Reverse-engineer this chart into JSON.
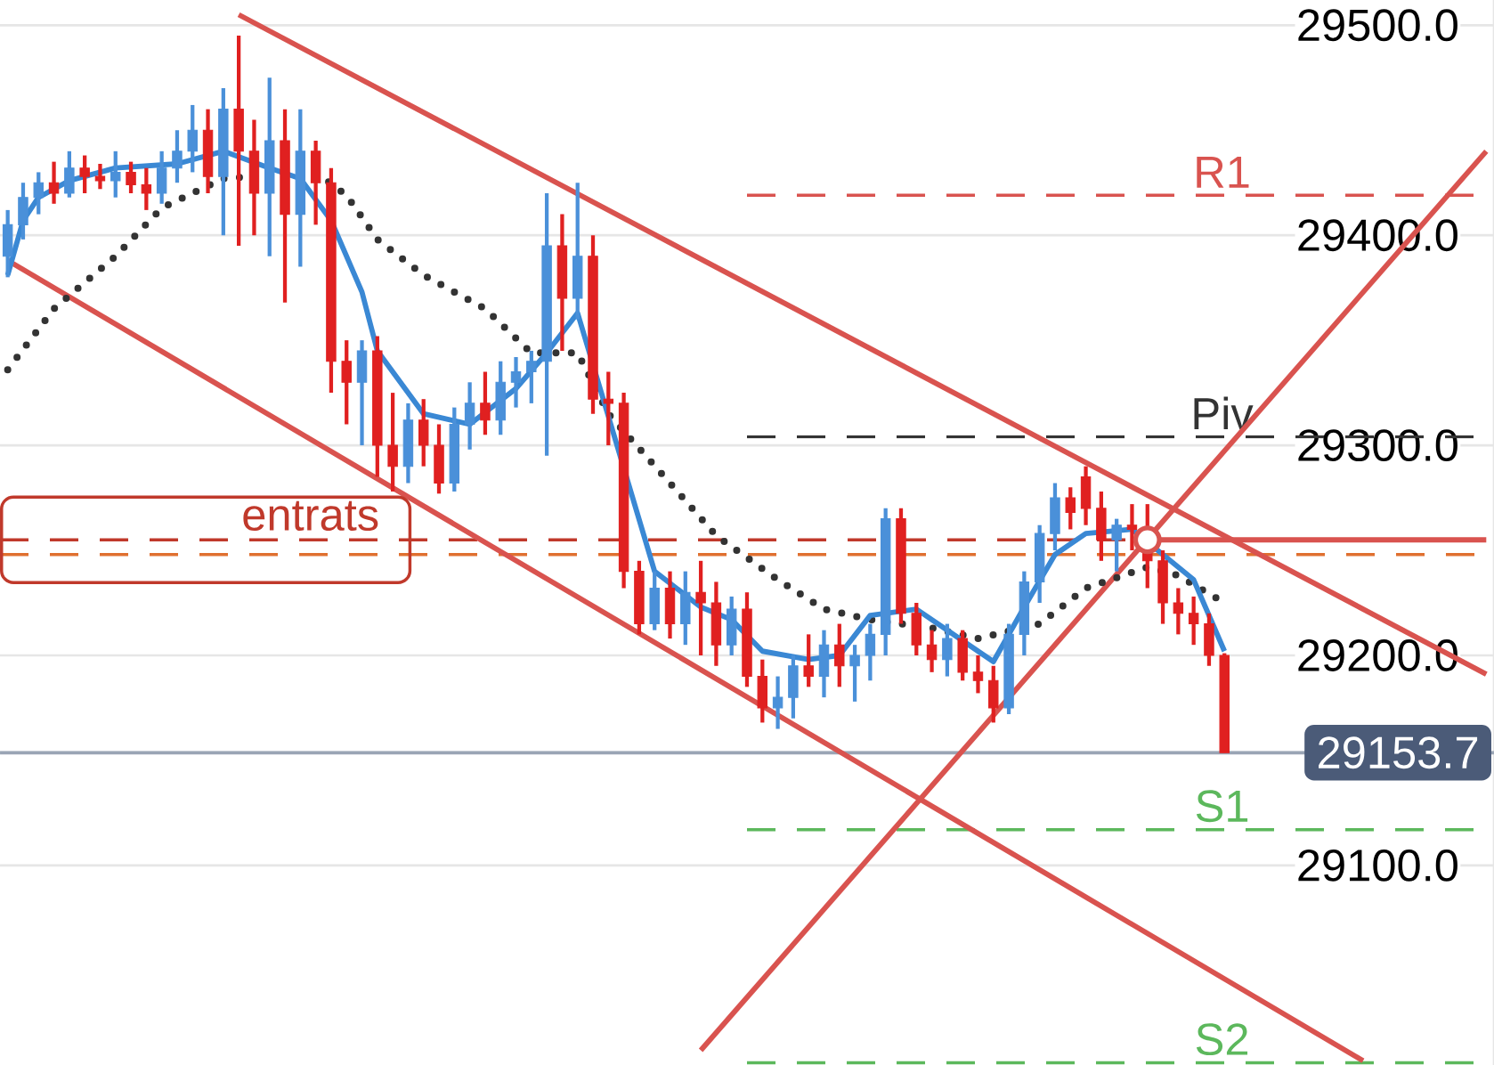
{
  "chart_data": {
    "type": "candlestick",
    "categories": [
      null,
      null,
      null,
      null,
      null,
      null,
      null,
      null,
      null,
      null,
      null,
      null,
      null,
      null,
      null,
      null,
      null,
      null,
      null,
      null,
      null,
      null,
      null,
      null,
      null,
      null,
      null,
      null,
      null,
      null,
      null,
      null,
      null,
      null,
      null,
      null,
      null,
      null,
      null,
      null,
      null,
      null,
      null,
      null,
      null,
      null,
      null,
      null,
      null,
      null,
      null,
      null,
      null,
      null,
      null,
      null,
      null,
      null,
      null,
      null,
      null,
      null,
      null,
      null,
      null,
      null,
      null,
      null,
      null,
      null,
      null,
      null,
      null,
      null,
      null,
      null,
      null,
      null,
      null,
      null,
      null,
      null,
      null,
      null,
      null,
      null,
      null,
      null,
      null,
      null,
      null,
      null,
      null,
      null,
      null,
      null,
      null
    ],
    "ohlc": [
      [
        29390,
        29412,
        29380,
        29405
      ],
      [
        29405,
        29425,
        29398,
        29418
      ],
      [
        29418,
        29430,
        29410,
        29425
      ],
      [
        29425,
        29435,
        29415,
        29420
      ],
      [
        29420,
        29440,
        29418,
        29432
      ],
      [
        29432,
        29438,
        29420,
        29428
      ],
      [
        29428,
        29434,
        29422,
        29426
      ],
      [
        29426,
        29440,
        29418,
        29430
      ],
      [
        29430,
        29435,
        29420,
        29424
      ],
      [
        29424,
        29432,
        29412,
        29420
      ],
      [
        29420,
        29440,
        29415,
        29432
      ],
      [
        29432,
        29450,
        29425,
        29440
      ],
      [
        29440,
        29462,
        29430,
        29450
      ],
      [
        29450,
        29460,
        29420,
        29428
      ],
      [
        29428,
        29470,
        29400,
        29460
      ],
      [
        29460,
        29495,
        29395,
        29440
      ],
      [
        29440,
        29455,
        29400,
        29420
      ],
      [
        29420,
        29475,
        29390,
        29445
      ],
      [
        29445,
        29460,
        29368,
        29410
      ],
      [
        29410,
        29460,
        29385,
        29440
      ],
      [
        29440,
        29445,
        29405,
        29425
      ],
      [
        29425,
        29432,
        29325,
        29340
      ],
      [
        29340,
        29350,
        29310,
        29330
      ],
      [
        29330,
        29350,
        29300,
        29345
      ],
      [
        29345,
        29352,
        29285,
        29300
      ],
      [
        29300,
        29325,
        29278,
        29290
      ],
      [
        29290,
        29320,
        29282,
        29312
      ],
      [
        29312,
        29322,
        29290,
        29300
      ],
      [
        29300,
        29310,
        29277,
        29282
      ],
      [
        29282,
        29318,
        29278,
        29310
      ],
      [
        29310,
        29330,
        29298,
        29320
      ],
      [
        29320,
        29335,
        29305,
        29312
      ],
      [
        29312,
        29340,
        29305,
        29330
      ],
      [
        29330,
        29342,
        29318,
        29335
      ],
      [
        29335,
        29345,
        29320,
        29340
      ],
      [
        29340,
        29420,
        29295,
        29395
      ],
      [
        29395,
        29410,
        29345,
        29370
      ],
      [
        29370,
        29425,
        29360,
        29390
      ],
      [
        29390,
        29400,
        29315,
        29322
      ],
      [
        29322,
        29335,
        29300,
        29320
      ],
      [
        29320,
        29325,
        29232,
        29240
      ],
      [
        29240,
        29245,
        29210,
        29215
      ],
      [
        29215,
        29240,
        29212,
        29232
      ],
      [
        29232,
        29240,
        29208,
        29215
      ],
      [
        29215,
        29240,
        29205,
        29230
      ],
      [
        29230,
        29245,
        29200,
        29225
      ],
      [
        29225,
        29235,
        29195,
        29205
      ],
      [
        29205,
        29228,
        29200,
        29222
      ],
      [
        29222,
        29230,
        29185,
        29190
      ],
      [
        29190,
        29198,
        29168,
        29175
      ],
      [
        29175,
        29190,
        29165,
        29180
      ],
      [
        29180,
        29200,
        29170,
        29195
      ],
      [
        29195,
        29210,
        29185,
        29190
      ],
      [
        29190,
        29212,
        29180,
        29205
      ],
      [
        29205,
        29215,
        29185,
        29195
      ],
      [
        29195,
        29205,
        29178,
        29200
      ],
      [
        29200,
        29215,
        29188,
        29210
      ],
      [
        29210,
        29270,
        29200,
        29265
      ],
      [
        29265,
        29270,
        29215,
        29220
      ],
      [
        29220,
        29225,
        29200,
        29205
      ],
      [
        29205,
        29212,
        29192,
        29198
      ],
      [
        29198,
        29215,
        29190,
        29208
      ],
      [
        29208,
        29212,
        29188,
        29192
      ],
      [
        29192,
        29200,
        29182,
        29188
      ],
      [
        29188,
        29195,
        29168,
        29175
      ],
      [
        29175,
        29215,
        29172,
        29210
      ],
      [
        29210,
        29240,
        29200,
        29235
      ],
      [
        29235,
        29262,
        29225,
        29258
      ],
      [
        29258,
        29282,
        29250,
        29275
      ],
      [
        29275,
        29280,
        29260,
        29268
      ],
      [
        29285,
        29290,
        29262,
        29270
      ],
      [
        29270,
        29278,
        29245,
        29255
      ],
      [
        29255,
        29265,
        29240,
        29262
      ],
      [
        29262,
        29272,
        29250,
        29260
      ],
      [
        29260,
        29272,
        29232,
        29245
      ],
      [
        29245,
        29250,
        29215,
        29225
      ],
      [
        29225,
        29232,
        29210,
        29220
      ],
      [
        29220,
        29228,
        29205,
        29215
      ],
      [
        29215,
        29220,
        29195,
        29200
      ],
      [
        29200,
        29201,
        29153.7,
        29153.7
      ],
      null,
      null,
      null,
      null,
      null,
      null,
      null,
      null,
      null,
      null,
      null,
      null,
      null,
      null,
      null,
      null,
      null
    ],
    "colors": [
      "#4a90d9",
      "#4a90d9",
      "#4a90d9",
      "#e02020",
      "#4a90d9",
      "#e02020",
      "#e02020",
      "#4a90d9",
      "#e02020",
      "#e02020",
      "#4a90d9",
      "#4a90d9",
      "#4a90d9",
      "#e02020",
      "#4a90d9",
      "#e02020",
      "#e02020",
      "#4a90d9",
      "#e02020",
      "#4a90d9",
      "#e02020",
      "#e02020",
      "#e02020",
      "#4a90d9",
      "#e02020",
      "#e02020",
      "#4a90d9",
      "#e02020",
      "#e02020",
      "#4a90d9",
      "#4a90d9",
      "#e02020",
      "#4a90d9",
      "#4a90d9",
      "#4a90d9",
      "#4a90d9",
      "#e02020",
      "#4a90d9",
      "#e02020",
      "#e02020",
      "#e02020",
      "#e02020",
      "#4a90d9",
      "#e02020",
      "#4a90d9",
      "#e02020",
      "#e02020",
      "#4a90d9",
      "#e02020",
      "#e02020",
      "#4a90d9",
      "#4a90d9",
      "#e02020",
      "#4a90d9",
      "#e02020",
      "#4a90d9",
      "#4a90d9",
      "#4a90d9",
      "#e02020",
      "#e02020",
      "#e02020",
      "#4a90d9",
      "#e02020",
      "#e02020",
      "#e02020",
      "#4a90d9",
      "#4a90d9",
      "#4a90d9",
      "#4a90d9",
      "#e02020",
      "#e02020",
      "#e02020",
      "#4a90d9",
      "#e02020",
      "#e02020",
      "#e02020",
      "#e02020",
      "#e02020",
      "#e02020",
      "#e02020",
      null,
      null,
      null,
      null,
      null,
      null,
      null,
      null,
      null,
      null,
      null,
      null,
      null,
      null,
      null,
      null,
      null
    ],
    "series": [
      {
        "type": "line",
        "color": "#d9534f",
        "values": [
          null,
          null,
          null,
          null,
          null,
          null,
          null,
          null,
          null,
          null,
          null,
          null,
          null,
          null,
          null,
          29505,
          null,
          null,
          null,
          null,
          null,
          null,
          null,
          null,
          null,
          null,
          null,
          null,
          null,
          null,
          null,
          null,
          null,
          null,
          null,
          null,
          null,
          null,
          null,
          null,
          null,
          null,
          null,
          null,
          null,
          null,
          null,
          null,
          null,
          null,
          null,
          null,
          null,
          null,
          null,
          null,
          null,
          null,
          null,
          null,
          null,
          null,
          null,
          null,
          null,
          null,
          null,
          null,
          null,
          null,
          null,
          null,
          null,
          null,
          null,
          null,
          null,
          null,
          null,
          null,
          null,
          null,
          null,
          null,
          null,
          null,
          null,
          null,
          null,
          null,
          null,
          null,
          null,
          null,
          null,
          null,
          29191
        ]
      },
      {
        "type": "line",
        "color": "#d9534f",
        "values": [
          29388,
          null,
          null,
          null,
          null,
          null,
          null,
          null,
          null,
          null,
          null,
          null,
          null,
          null,
          null,
          null,
          null,
          null,
          null,
          null,
          null,
          null,
          null,
          null,
          null,
          null,
          null,
          null,
          null,
          null,
          null,
          null,
          null,
          null,
          null,
          null,
          null,
          null,
          null,
          null,
          null,
          null,
          null,
          null,
          null,
          null,
          null,
          null,
          null,
          null,
          null,
          null,
          null,
          null,
          null,
          null,
          null,
          null,
          null,
          null,
          null,
          null,
          null,
          null,
          null,
          null,
          null,
          null,
          null,
          null,
          null,
          null,
          null,
          null,
          null,
          null,
          null,
          null,
          null,
          null,
          null,
          null,
          null,
          null,
          null,
          null,
          null,
          null,
          29007,
          null,
          null,
          null,
          null,
          null,
          null,
          null,
          null
        ]
      },
      {
        "type": "line",
        "color": "#d9534f",
        "values": [
          null,
          null,
          null,
          null,
          null,
          null,
          null,
          null,
          null,
          null,
          null,
          null,
          null,
          null,
          null,
          null,
          null,
          null,
          null,
          null,
          null,
          null,
          null,
          null,
          null,
          null,
          null,
          null,
          null,
          null,
          null,
          null,
          null,
          null,
          null,
          null,
          null,
          null,
          null,
          null,
          null,
          null,
          null,
          null,
          null,
          29012,
          null,
          null,
          null,
          null,
          null,
          null,
          null,
          null,
          null,
          null,
          null,
          null,
          null,
          null,
          null,
          null,
          null,
          null,
          null,
          null,
          null,
          null,
          null,
          null,
          null,
          null,
          null,
          null,
          null,
          null,
          null,
          null,
          null,
          null,
          null,
          null,
          null,
          null,
          null,
          null,
          null,
          null,
          null,
          null,
          null,
          null,
          null,
          null,
          null,
          null,
          29440
        ]
      },
      {
        "type": "line",
        "color": "#d9534f",
        "values": [
          null,
          null,
          null,
          null,
          null,
          null,
          null,
          null,
          null,
          null,
          null,
          null,
          null,
          null,
          null,
          null,
          null,
          null,
          null,
          null,
          null,
          null,
          null,
          null,
          null,
          null,
          null,
          null,
          null,
          null,
          null,
          null,
          null,
          null,
          null,
          null,
          null,
          null,
          null,
          null,
          null,
          null,
          null,
          null,
          null,
          null,
          null,
          null,
          null,
          null,
          null,
          null,
          null,
          null,
          null,
          null,
          null,
          null,
          null,
          null,
          null,
          null,
          null,
          null,
          null,
          null,
          null,
          null,
          null,
          null,
          null,
          null,
          null,
          null,
          29255,
          null,
          null,
          null,
          null,
          null,
          null,
          null,
          null,
          null,
          null,
          null,
          null,
          null,
          null,
          null,
          null,
          null,
          null,
          null,
          null,
          null,
          29255
        ]
      },
      {
        "type": "line",
        "color": "#333333",
        "line_style": "dotted",
        "values": [
          29336,
          null,
          null,
          29365,
          null,
          null,
          null,
          29390,
          null,
          null,
          29413,
          null,
          null,
          null,
          29427,
          null,
          null,
          null,
          null,
          null,
          29430,
          null,
          29419,
          null,
          29398,
          null,
          null,
          29381,
          null,
          null,
          null,
          29365,
          null,
          null,
          29344,
          null,
          null,
          29344,
          null,
          29315,
          null,
          null,
          null,
          29282,
          null,
          null,
          29257,
          null,
          null,
          null,
          29236,
          null,
          null,
          29222,
          null,
          null,
          29217,
          null,
          null,
          null,
          29213,
          null,
          null,
          29208,
          null,
          null,
          null,
          29215,
          null,
          null,
          29232,
          null,
          null,
          null,
          29242,
          null,
          29238,
          null,
          null,
          29225,
          null,
          null,
          null,
          null,
          null,
          null,
          null,
          null,
          null,
          null,
          null,
          null,
          null,
          null,
          null,
          null,
          null
        ]
      },
      {
        "type": "line",
        "color": "#3a88d4",
        "values": [
          29381,
          29407,
          29418,
          null,
          29426,
          null,
          null,
          29432,
          null,
          null,
          null,
          29434,
          null,
          null,
          29440,
          null,
          null,
          29432,
          null,
          29427,
          null,
          29407,
          null,
          29373,
          29345,
          null,
          null,
          29315,
          null,
          null,
          29310,
          null,
          null,
          29327,
          null,
          29344,
          null,
          29363,
          null,
          null,
          null,
          null,
          29240,
          null,
          null,
          29223,
          null,
          29217,
          null,
          29202,
          null,
          null,
          29198,
          null,
          29200,
          null,
          29219,
          null,
          null,
          29222,
          null,
          null,
          29207,
          null,
          29197,
          null,
          29223,
          null,
          29248,
          null,
          29258,
          null,
          null,
          29260,
          null,
          null,
          null,
          29236,
          null,
          29202,
          null,
          null,
          null,
          null,
          null,
          null,
          null,
          null,
          null,
          null,
          null,
          null,
          null,
          null,
          null,
          null,
          null
        ]
      },
      {
        "type": "scatter",
        "marker": "circle",
        "color": "#d9534f",
        "values": [
          null,
          null,
          null,
          null,
          null,
          null,
          null,
          null,
          null,
          null,
          null,
          null,
          null,
          null,
          null,
          null,
          null,
          null,
          null,
          null,
          null,
          null,
          null,
          null,
          null,
          null,
          null,
          null,
          null,
          null,
          null,
          null,
          null,
          null,
          null,
          null,
          null,
          null,
          null,
          null,
          null,
          null,
          null,
          null,
          null,
          null,
          null,
          null,
          null,
          null,
          null,
          null,
          null,
          null,
          null,
          null,
          null,
          null,
          null,
          null,
          null,
          null,
          null,
          null,
          null,
          null,
          null,
          null,
          null,
          null,
          null,
          null,
          null,
          null,
          29255,
          null,
          null,
          null,
          null,
          null,
          null,
          null,
          null,
          null,
          null,
          null,
          null,
          null,
          null,
          null,
          null,
          null,
          null,
          null,
          null,
          null,
          null
        ]
      }
    ],
    "ref_lines": [
      {
        "axis": "y",
        "value": 29419,
        "label": "R1",
        "color": "#d9534f",
        "line_style": "dashed"
      },
      {
        "axis": "y",
        "value": 29304,
        "label": "Piv",
        "color": "#333333",
        "line_style": "dashed"
      },
      {
        "axis": "y",
        "value": 29117,
        "label": "S1",
        "color": "#5cb85c",
        "line_style": "dashed"
      },
      {
        "axis": "y",
        "value": 29006,
        "label": "S2",
        "color": "#5cb85c",
        "line_style": "dashed"
      },
      {
        "axis": "y",
        "value": 29255,
        "color": "#c0392b",
        "line_style": "dashed"
      },
      {
        "axis": "y",
        "value": 29248,
        "color": "#e07030",
        "line_style": "dashed"
      },
      {
        "axis": "y",
        "value": 29153.7,
        "label": "29153.7",
        "color": "#9aa5b5",
        "line_style": "solid"
      }
    ],
    "annotations": [
      {
        "text": "entrats",
        "y": 29255
      }
    ],
    "ylim": [
      29005,
      29512
    ],
    "yticks": [
      {
        "value": 29100,
        "label": "29100.0"
      },
      {
        "value": 29200,
        "label": "29200.0"
      },
      {
        "value": 29300,
        "label": "29300.0"
      },
      {
        "value": 29400,
        "label": "29400.0"
      },
      {
        "value": 29500,
        "label": "29500.0"
      }
    ],
    "grid": "y"
  }
}
